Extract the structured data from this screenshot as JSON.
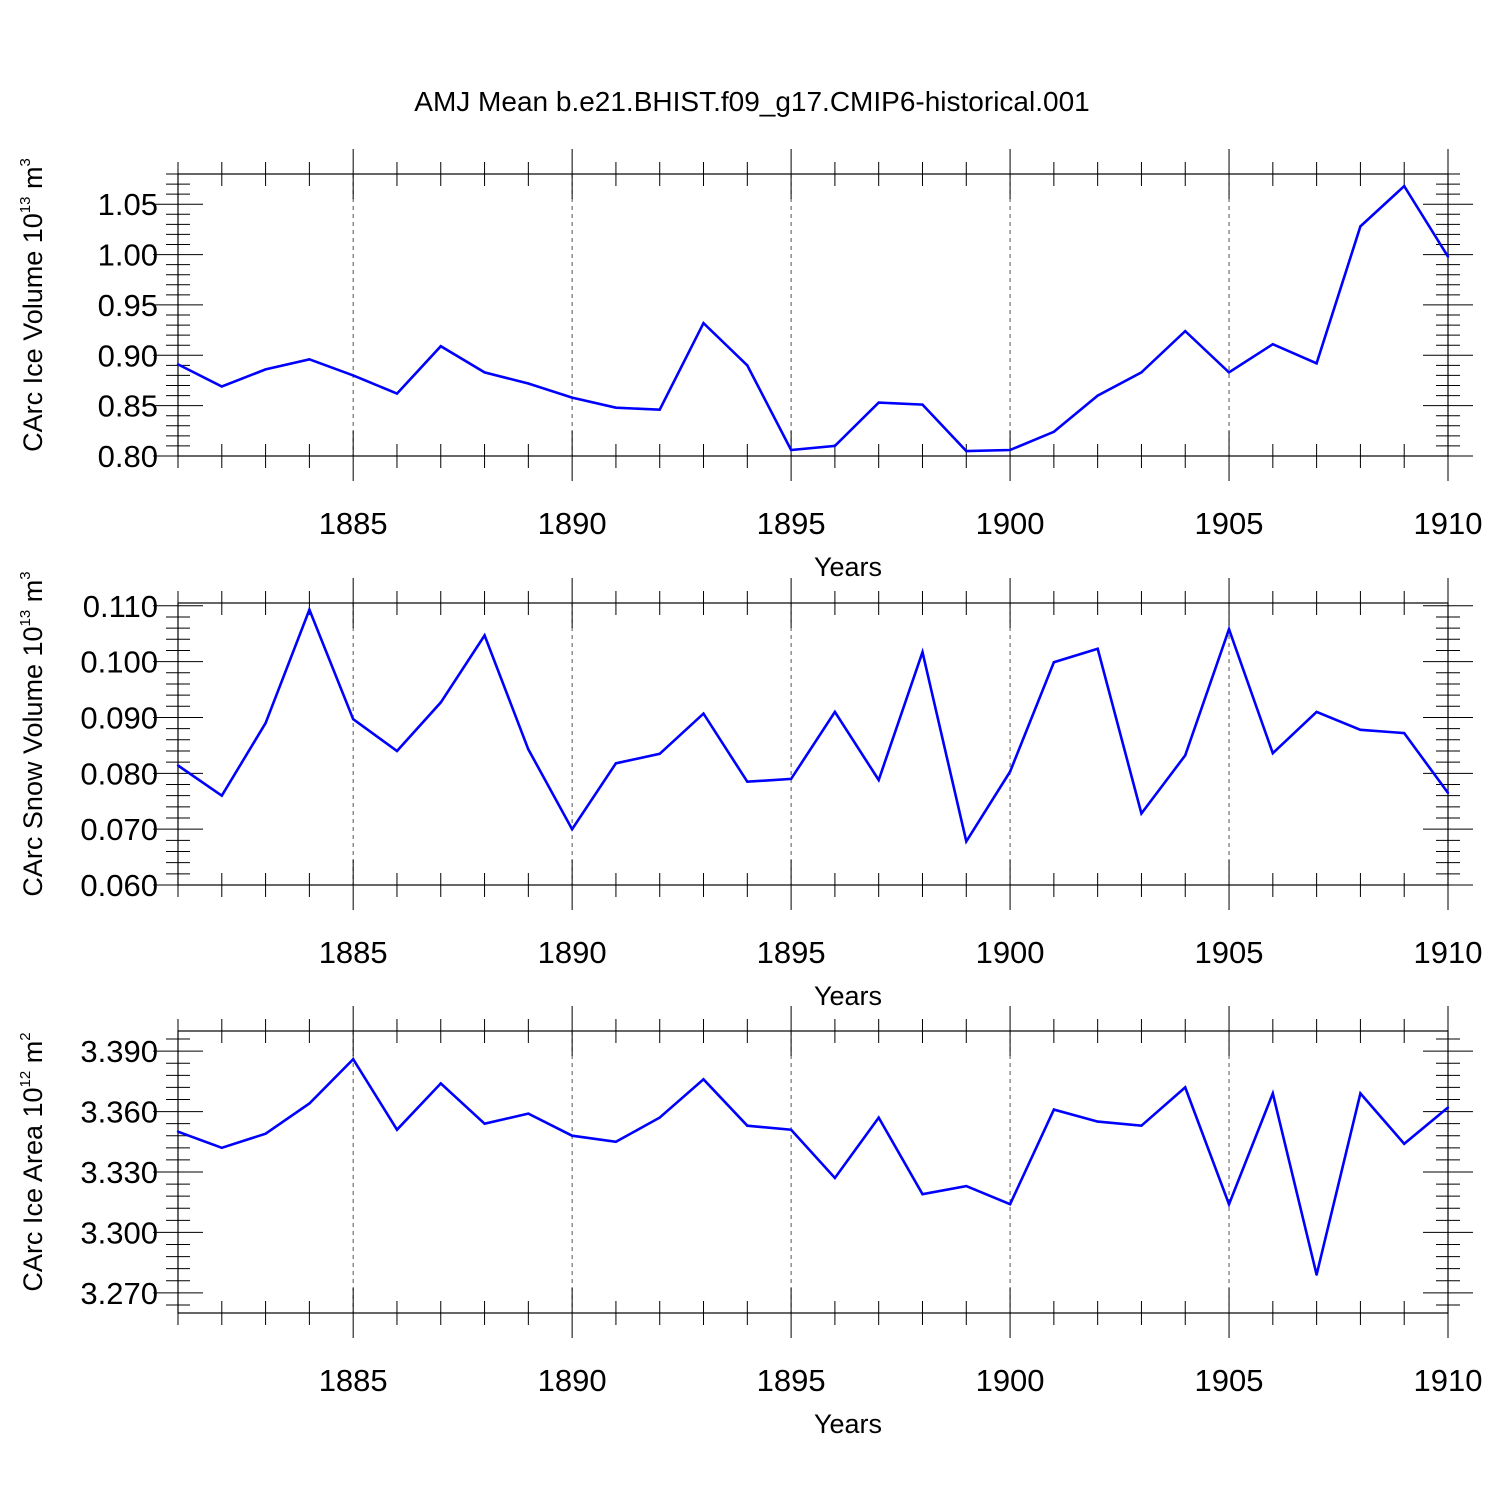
{
  "figure_title": "AMJ Mean b.e21.BHIST.f09_g17.CMIP6-historical.001",
  "chart_data": [
    {
      "type": "line",
      "panel": "ice-volume",
      "ylabel": "CArc Ice Volume 10",
      "ylabel_exp": "13",
      "ylabel_unit": " m",
      "ylabel_unit_exp": "3",
      "xlabel": "Years",
      "xlim": [
        1881,
        1910
      ],
      "ylim": [
        0.8,
        1.08
      ],
      "yticks": [
        0.8,
        0.85,
        0.9,
        0.95,
        1.0,
        1.05
      ],
      "yticklabels": [
        "0.80",
        "0.85",
        "0.90",
        "0.95",
        "1.00",
        "1.05"
      ],
      "xticks": [
        1885,
        1890,
        1895,
        1900,
        1905,
        1910
      ],
      "xticklabels": [
        "1885",
        "1890",
        "1895",
        "1900",
        "1905",
        "1910"
      ],
      "color": "#0000ff",
      "x": [
        1881,
        1882,
        1883,
        1884,
        1885,
        1886,
        1887,
        1888,
        1889,
        1890,
        1891,
        1892,
        1893,
        1894,
        1895,
        1896,
        1897,
        1898,
        1899,
        1900,
        1901,
        1902,
        1903,
        1904,
        1905,
        1906,
        1907,
        1908,
        1909,
        1910
      ],
      "values": [
        0.891,
        0.869,
        0.886,
        0.896,
        0.88,
        0.862,
        0.909,
        0.883,
        0.872,
        0.858,
        0.848,
        0.846,
        0.932,
        0.89,
        0.806,
        0.81,
        0.853,
        0.851,
        0.805,
        0.806,
        0.824,
        0.86,
        0.883,
        0.924,
        0.883,
        0.911,
        0.892,
        1.028,
        1.068,
        0.998
      ]
    },
    {
      "type": "line",
      "panel": "snow-volume",
      "ylabel": "CArc Snow Volume 10",
      "ylabel_exp": "13",
      "ylabel_unit": " m",
      "ylabel_unit_exp": "3",
      "xlabel": "Years",
      "xlim": [
        1881,
        1910
      ],
      "ylim": [
        0.06,
        0.1105
      ],
      "yticks": [
        0.06,
        0.07,
        0.08,
        0.09,
        0.1,
        0.11
      ],
      "yticklabels": [
        "0.060",
        "0.070",
        "0.080",
        "0.090",
        "0.100",
        "0.110"
      ],
      "xticks": [
        1885,
        1890,
        1895,
        1900,
        1905,
        1910
      ],
      "xticklabels": [
        "1885",
        "1890",
        "1895",
        "1900",
        "1905",
        "1910"
      ],
      "color": "#0000ff",
      "x": [
        1881,
        1882,
        1883,
        1884,
        1885,
        1886,
        1887,
        1888,
        1889,
        1890,
        1891,
        1892,
        1893,
        1894,
        1895,
        1896,
        1897,
        1898,
        1899,
        1900,
        1901,
        1902,
        1903,
        1904,
        1905,
        1906,
        1907,
        1908,
        1909,
        1910
      ],
      "values": [
        0.0814,
        0.076,
        0.089,
        0.1093,
        0.0897,
        0.084,
        0.0927,
        0.1047,
        0.0843,
        0.07,
        0.0818,
        0.0835,
        0.0907,
        0.0785,
        0.079,
        0.091,
        0.0788,
        0.1017,
        0.0678,
        0.0803,
        0.0999,
        0.1023,
        0.0728,
        0.0832,
        0.1058,
        0.0836,
        0.091,
        0.0878,
        0.0872,
        0.0765
      ]
    },
    {
      "type": "line",
      "panel": "ice-area",
      "ylabel": "CArc Ice Area 10",
      "ylabel_exp": "12",
      "ylabel_unit": " m",
      "ylabel_unit_exp": "2",
      "xlabel": "Years",
      "xlim": [
        1881,
        1910
      ],
      "ylim": [
        3.26,
        3.4
      ],
      "yticks": [
        3.27,
        3.3,
        3.33,
        3.36,
        3.39
      ],
      "yticklabels": [
        "3.270",
        "3.300",
        "3.330",
        "3.360",
        "3.390"
      ],
      "xticks": [
        1885,
        1890,
        1895,
        1900,
        1905,
        1910
      ],
      "xticklabels": [
        "1885",
        "1890",
        "1895",
        "1900",
        "1905",
        "1910"
      ],
      "color": "#0000ff",
      "x": [
        1881,
        1882,
        1883,
        1884,
        1885,
        1886,
        1887,
        1888,
        1889,
        1890,
        1891,
        1892,
        1893,
        1894,
        1895,
        1896,
        1897,
        1898,
        1899,
        1900,
        1901,
        1902,
        1903,
        1904,
        1905,
        1906,
        1907,
        1908,
        1909,
        1910
      ],
      "values": [
        3.35,
        3.342,
        3.349,
        3.364,
        3.386,
        3.351,
        3.374,
        3.354,
        3.359,
        3.348,
        3.345,
        3.357,
        3.376,
        3.353,
        3.351,
        3.327,
        3.357,
        3.319,
        3.323,
        3.314,
        3.361,
        3.355,
        3.353,
        3.372,
        3.314,
        3.369,
        3.279,
        3.369,
        3.344,
        3.362
      ]
    }
  ]
}
